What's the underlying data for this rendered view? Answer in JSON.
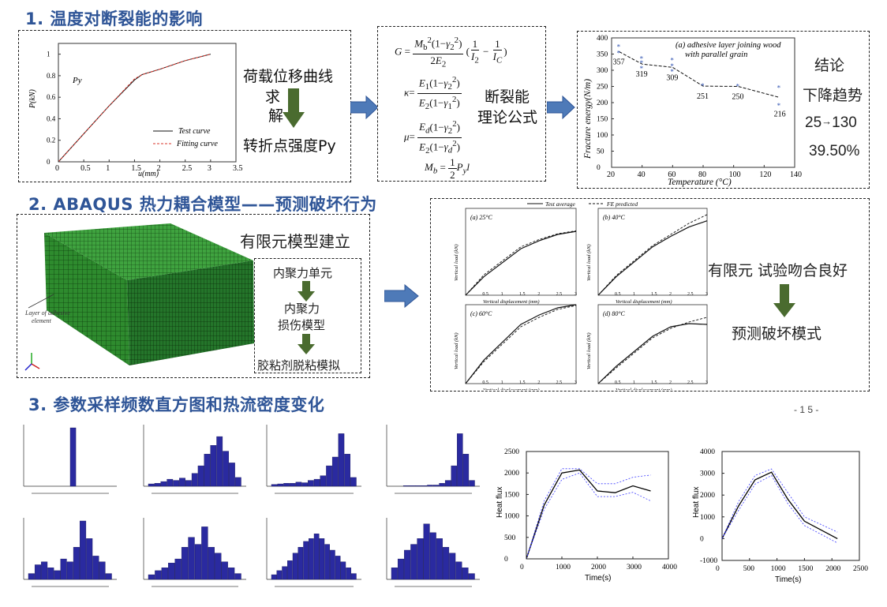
{
  "sections": {
    "s1": "1. 温度对断裂能的影响",
    "s2": "2. ABAQUS 热力耦合模型——预测破坏行为",
    "s3": "3. 参数采样频数直方图和热流密度变化"
  },
  "page_number": "- 1 5 -",
  "box1": {
    "step1": "荷载位移曲线",
    "step2a": "求",
    "step2b": "解",
    "step3": "转折点强度Py"
  },
  "pd_chart": {
    "ylabel": "P(kN)",
    "xlabel": "u(mm)",
    "py_label": "Py",
    "legend_test": "Test curve",
    "legend_fit": "Fitting curve",
    "xticks": [
      "0",
      "0.5",
      "1",
      "1.5",
      "2",
      "2.5",
      "3",
      "3.5"
    ],
    "yticks": [
      "0",
      "0.2",
      "0.4",
      "0.6",
      "0.8",
      "1"
    ]
  },
  "formula_box": {
    "label_a": "断裂能",
    "label_b": "理论公式"
  },
  "fe_chart": {
    "ylabel": "Fracture energy(N/m)",
    "xlabel": "Temperature (°C)",
    "annotation_a": "(a) adhesive layer joining wood",
    "annotation_b": "with parallel grain",
    "xticks": [
      "20",
      "40",
      "60",
      "80",
      "100",
      "120",
      "140"
    ],
    "yticks": [
      "0",
      "50",
      "100",
      "150",
      "200",
      "250",
      "300",
      "350",
      "400"
    ],
    "point_labels": [
      "357",
      "319",
      "309",
      "251",
      "250",
      "216"
    ]
  },
  "conclusion": {
    "title": "结论",
    "line1": "下降趋势",
    "line2a": "25",
    "line2b": "130",
    "line3": "39.50%"
  },
  "fem_box": {
    "title": "有限元模型建立",
    "step1": "内聚力单元",
    "step2a": "内聚力",
    "step2b": "损伤模型",
    "step3": "胶粘剂脱粘模拟",
    "mesh_label_a": "Layer of adhesive",
    "mesh_label_b": "element"
  },
  "ld_charts": {
    "legend_test": "Test average",
    "legend_fe": "FE predicted",
    "panels": [
      {
        "label": "(a)  25°C"
      },
      {
        "label": "(b)  40°C"
      },
      {
        "label": "(c)  60°C"
      },
      {
        "label": "(d)  80°C"
      }
    ],
    "xlabel": "Vertical displacement (mm)",
    "ylabel": "Vertical load (kN)"
  },
  "fe_result": {
    "line1": "有限元 试验吻合良好",
    "line2": "预测破坏模式"
  },
  "heat_flux_1": {
    "ylabel": "Heat flux",
    "xlabel": "Time(s)",
    "xticks": [
      "0",
      "1000",
      "2000",
      "3000",
      "4000"
    ],
    "yticks": [
      "0",
      "500",
      "1000",
      "1500",
      "2000",
      "2500"
    ]
  },
  "heat_flux_2": {
    "ylabel": "Heat flux",
    "xlabel": "Time(s)",
    "xticks": [
      "0",
      "500",
      "1000",
      "1500",
      "2000",
      "2500"
    ],
    "yticks": [
      "-1000",
      "0",
      "1000",
      "2000",
      "3000",
      "4000"
    ]
  },
  "chart_data": [
    {
      "type": "line",
      "title": "",
      "xlabel": "u(mm)",
      "ylabel": "P(kN)",
      "xlim": [
        0,
        3.5
      ],
      "ylim": [
        0,
        1.1
      ],
      "series": [
        {
          "name": "Test curve",
          "x": [
            0,
            0.5,
            1.0,
            1.5,
            1.65,
            2.0,
            2.5,
            3.0
          ],
          "y": [
            0,
            0.26,
            0.52,
            0.76,
            0.81,
            0.86,
            0.94,
            1.0
          ]
        },
        {
          "name": "Fitting curve",
          "x": [
            0,
            0.5,
            1.0,
            1.5,
            1.65,
            2.0,
            2.5,
            3.0
          ],
          "y": [
            0,
            0.26,
            0.52,
            0.77,
            0.81,
            0.86,
            0.94,
            1.0
          ]
        }
      ]
    },
    {
      "type": "scatter",
      "title": "",
      "xlabel": "Temperature (°C)",
      "ylabel": "Fracture energy(N/m)",
      "xlim": [
        20,
        140
      ],
      "ylim": [
        0,
        400
      ],
      "series": [
        {
          "name": "",
          "x": [
            25,
            25,
            40,
            40,
            40,
            60,
            60,
            60,
            80,
            103,
            130,
            130
          ],
          "y": [
            372,
            352,
            335,
            322,
            305,
            330,
            312,
            295,
            251,
            250,
            245,
            190
          ]
        },
        {
          "name": "",
          "x": [
            25,
            40,
            60,
            80,
            103,
            130
          ],
          "y": [
            357,
            319,
            309,
            251,
            250,
            216
          ]
        }
      ]
    },
    {
      "type": "line",
      "title": "",
      "xlabel": "Time(s)",
      "ylabel": "Heat flux",
      "xlim": [
        0,
        4000
      ],
      "ylim": [
        0,
        2500
      ],
      "series": [
        {
          "name": "",
          "x": [
            0,
            500,
            1000,
            1500,
            2000,
            2500,
            3000,
            3500
          ],
          "y": [
            0,
            1250,
            2000,
            2070,
            1580,
            1540,
            1700,
            1580
          ]
        },
        {
          "name": "",
          "x": [
            0,
            500,
            1000,
            1500,
            2000,
            2500,
            3000,
            3500
          ],
          "y": [
            0,
            1350,
            2100,
            2100,
            1750,
            1750,
            1900,
            1950
          ]
        },
        {
          "name": "",
          "x": [
            0,
            500,
            1000,
            1500,
            2000,
            2500,
            3000,
            3500
          ],
          "y": [
            0,
            1150,
            1850,
            2000,
            1450,
            1450,
            1550,
            1350
          ]
        }
      ]
    },
    {
      "type": "line",
      "title": "",
      "xlabel": "Time(s)",
      "ylabel": "Heat flux",
      "xlim": [
        0,
        2500
      ],
      "ylim": [
        -1000,
        4000
      ],
      "series": [
        {
          "name": "",
          "x": [
            0,
            300,
            600,
            900,
            1200,
            1500,
            2100
          ],
          "y": [
            0,
            1500,
            2700,
            3050,
            1800,
            800,
            0
          ]
        },
        {
          "name": "",
          "x": [
            0,
            300,
            600,
            900,
            1200,
            1500,
            2100
          ],
          "y": [
            0,
            1700,
            2900,
            3200,
            2100,
            1000,
            300
          ]
        },
        {
          "name": "",
          "x": [
            0,
            300,
            600,
            900,
            1200,
            1500,
            2100
          ],
          "y": [
            0,
            1300,
            2500,
            2900,
            1600,
            600,
            -200
          ]
        }
      ]
    }
  ]
}
